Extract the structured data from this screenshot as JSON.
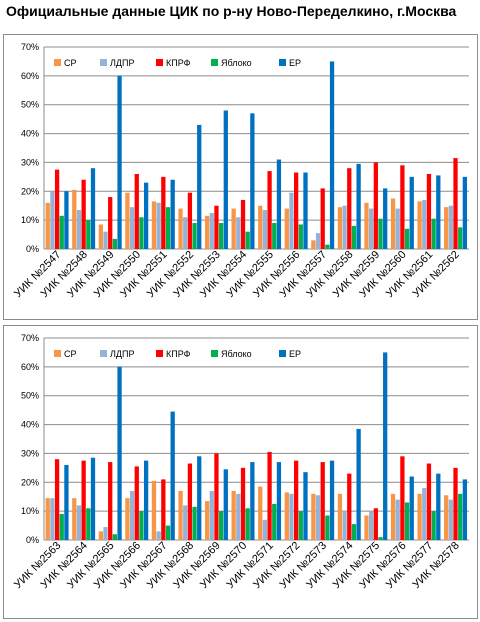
{
  "title": "Официальные данные ЦИК по р-ну Ново-Переделкино, г.Москва",
  "colors": {
    "СР": "#f79646",
    "ЛДПР": "#95b3d7",
    "КПРФ": "#ff0000",
    "Яблоко": "#00b050",
    "ЕР": "#0070c0"
  },
  "chart_data": [
    {
      "type": "bar",
      "title": "",
      "xlabel": "",
      "ylabel": "",
      "ylim": [
        0,
        0.7
      ],
      "yticks": [
        "0%",
        "10%",
        "20%",
        "30%",
        "40%",
        "50%",
        "60%",
        "70%"
      ],
      "grid": true,
      "legend_position": "top",
      "categories": [
        "УИК №2547",
        "УИК №2548",
        "УИК №2549",
        "УИК №2550",
        "УИК №2551",
        "УИК №2552",
        "УИК №2553",
        "УИК №2554",
        "УИК №2555",
        "УИК №2556",
        "УИК №2557",
        "УИК №2558",
        "УИК №2559",
        "УИК №2560",
        "УИК №2561",
        "УИК №2562"
      ],
      "series": [
        {
          "name": "СР",
          "values": [
            0.16,
            0.205,
            0.085,
            0.195,
            0.165,
            0.14,
            0.115,
            0.14,
            0.15,
            0.14,
            0.03,
            0.145,
            0.16,
            0.175,
            0.165,
            0.145
          ]
        },
        {
          "name": "ЛДПР",
          "values": [
            0.2,
            0.135,
            0.06,
            0.145,
            0.16,
            0.11,
            0.125,
            0.11,
            0.135,
            0.195,
            0.055,
            0.15,
            0.14,
            0.14,
            0.17,
            0.15
          ]
        },
        {
          "name": "КПРФ",
          "values": [
            0.275,
            0.24,
            0.18,
            0.26,
            0.25,
            0.195,
            0.15,
            0.17,
            0.27,
            0.265,
            0.21,
            0.28,
            0.3,
            0.29,
            0.26,
            0.315
          ]
        },
        {
          "name": "Яблоко",
          "values": [
            0.115,
            0.1,
            0.035,
            0.11,
            0.145,
            0.09,
            0.09,
            0.06,
            0.09,
            0.085,
            0.015,
            0.08,
            0.105,
            0.07,
            0.105,
            0.075
          ]
        },
        {
          "name": "ЕР",
          "values": [
            0.2,
            0.28,
            0.6,
            0.23,
            0.24,
            0.43,
            0.48,
            0.47,
            0.31,
            0.265,
            0.65,
            0.295,
            0.21,
            0.25,
            0.255,
            0.25
          ]
        }
      ]
    },
    {
      "type": "bar",
      "title": "",
      "xlabel": "",
      "ylabel": "",
      "ylim": [
        0,
        0.7
      ],
      "yticks": [
        "0%",
        "10%",
        "20%",
        "30%",
        "40%",
        "50%",
        "60%",
        "70%"
      ],
      "grid": true,
      "legend_position": "top",
      "categories": [
        "УИК №2563",
        "УИК №2564",
        "УИК №2565",
        "УИК №2566",
        "УИК №2567",
        "УИК №2568",
        "УИК №2569",
        "УИК №2570",
        "УИК №2571",
        "УИК №2572",
        "УИК №2573",
        "УИК №2574",
        "УИК №2575",
        "УИК №2576",
        "УИК №2577",
        "УИК №2578"
      ],
      "series": [
        {
          "name": "СР",
          "values": [
            0.145,
            0.145,
            0.03,
            0.145,
            0.205,
            0.17,
            0.135,
            0.17,
            0.185,
            0.165,
            0.16,
            0.16,
            0.085,
            0.16,
            0.16,
            0.155
          ]
        },
        {
          "name": "ЛДПР",
          "values": [
            0.145,
            0.12,
            0.045,
            0.17,
            0.03,
            0.12,
            0.17,
            0.16,
            0.07,
            0.16,
            0.155,
            0.1,
            0.1,
            0.14,
            0.18,
            0.14
          ]
        },
        {
          "name": "КПРФ",
          "values": [
            0.28,
            0.275,
            0.27,
            0.255,
            0.21,
            0.265,
            0.3,
            0.25,
            0.305,
            0.275,
            0.27,
            0.23,
            0.11,
            0.29,
            0.265,
            0.25
          ]
        },
        {
          "name": "Яблоко",
          "values": [
            0.09,
            0.11,
            0.02,
            0.1,
            0.05,
            0.115,
            0.1,
            0.11,
            0.125,
            0.1,
            0.085,
            0.055,
            0.01,
            0.13,
            0.1,
            0.16
          ]
        },
        {
          "name": "ЕР",
          "values": [
            0.26,
            0.285,
            0.6,
            0.275,
            0.445,
            0.29,
            0.245,
            0.27,
            0.27,
            0.235,
            0.275,
            0.385,
            0.65,
            0.22,
            0.23,
            0.21
          ]
        }
      ]
    }
  ]
}
